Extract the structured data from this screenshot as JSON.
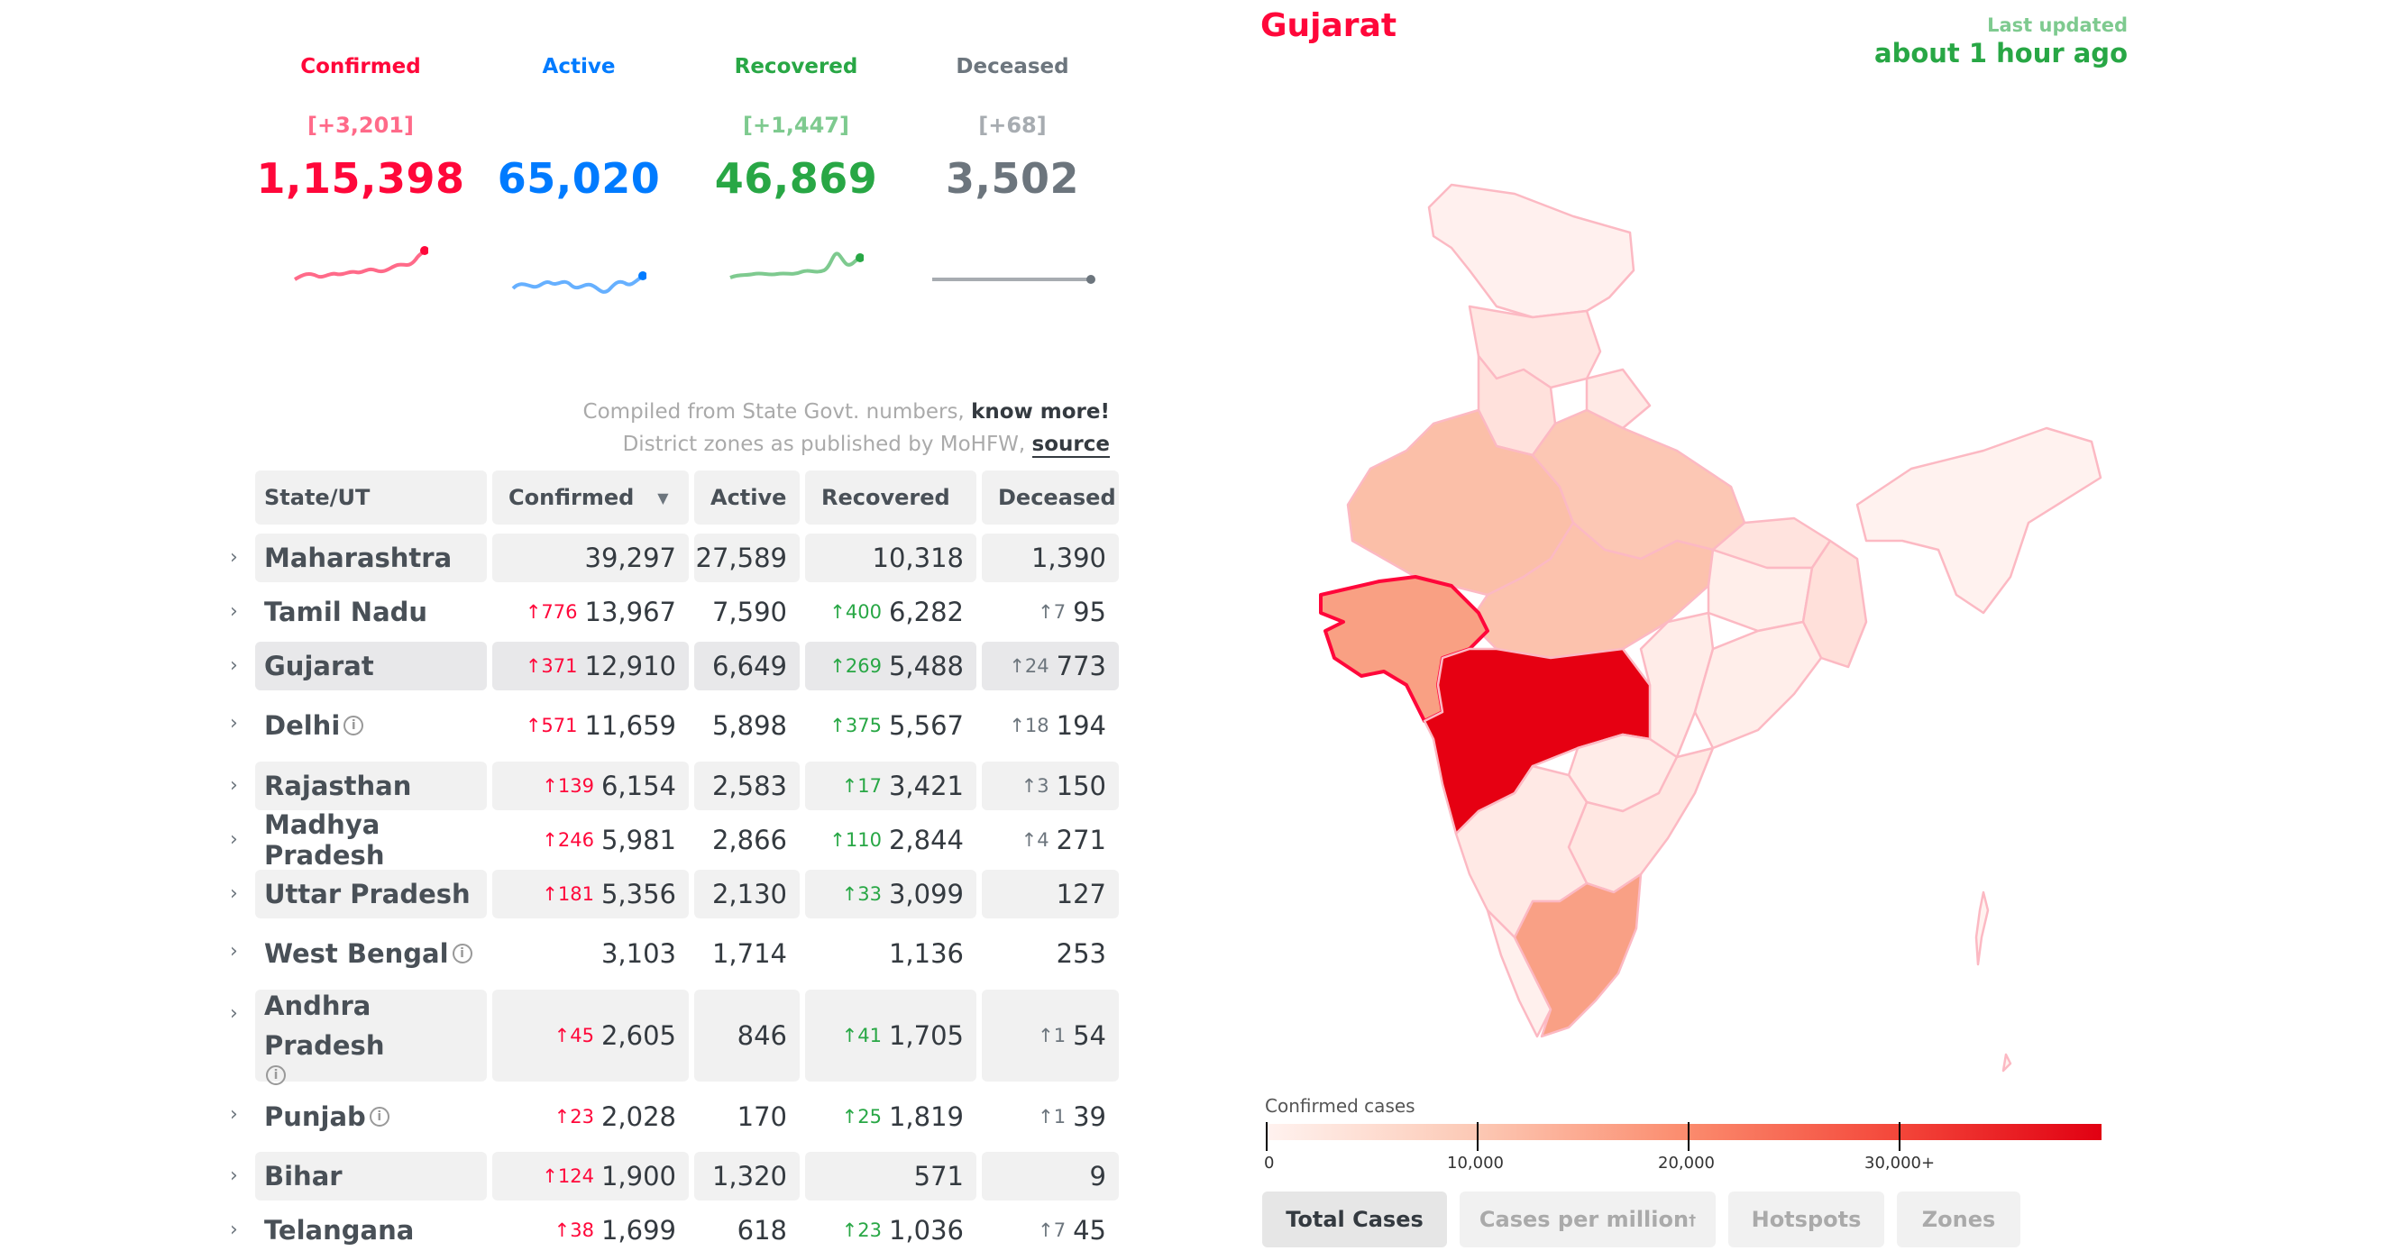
{
  "levels": [
    {
      "label": "Confirmed",
      "delta": "[+3,201]",
      "value": "1,15,398",
      "color": "#ff073a"
    },
    {
      "label": "Active",
      "delta": "",
      "value": "65,020",
      "color": "#007bff"
    },
    {
      "label": "Recovered",
      "delta": "[+1,447]",
      "value": "46,869",
      "color": "#28a745"
    },
    {
      "label": "Deceased",
      "delta": "[+68]",
      "value": "3,502",
      "color": "#6c757d"
    }
  ],
  "notes": {
    "line1_text": "Compiled from State Govt. numbers,",
    "line1_link": "know more!",
    "line2_text": "District zones as published by MoHFW,",
    "line2_link": "source"
  },
  "table": {
    "headers": {
      "state": "State/UT",
      "confirmed": "Confirmed",
      "active": "Active",
      "recovered": "Recovered",
      "deceased": "Deceased"
    },
    "rows": [
      {
        "state": "Maharashtra",
        "dc": "",
        "confirmed": "39,297",
        "active": "27,589",
        "dr": "",
        "recovered": "10,318",
        "dd": "",
        "deceased": "1,390"
      },
      {
        "state": "Tamil Nadu",
        "dc": "↑776",
        "confirmed": "13,967",
        "active": "7,590",
        "dr": "↑400",
        "recovered": "6,282",
        "dd": "↑7",
        "deceased": "95"
      },
      {
        "state": "Gujarat",
        "dc": "↑371",
        "confirmed": "12,910",
        "active": "6,649",
        "dr": "↑269",
        "recovered": "5,488",
        "dd": "↑24",
        "deceased": "773"
      },
      {
        "state": "Delhi",
        "dc": "↑571",
        "confirmed": "11,659",
        "active": "5,898",
        "dr": "↑375",
        "recovered": "5,567",
        "dd": "↑18",
        "deceased": "194"
      },
      {
        "state": "Rajasthan",
        "dc": "↑139",
        "confirmed": "6,154",
        "active": "2,583",
        "dr": "↑17",
        "recovered": "3,421",
        "dd": "↑3",
        "deceased": "150"
      },
      {
        "state": "Madhya Pradesh",
        "dc": "↑246",
        "confirmed": "5,981",
        "active": "2,866",
        "dr": "↑110",
        "recovered": "2,844",
        "dd": "↑4",
        "deceased": "271"
      },
      {
        "state": "Uttar Pradesh",
        "dc": "↑181",
        "confirmed": "5,356",
        "active": "2,130",
        "dr": "↑33",
        "recovered": "3,099",
        "dd": "",
        "deceased": "127"
      },
      {
        "state": "West Bengal",
        "dc": "",
        "confirmed": "3,103",
        "active": "1,714",
        "dr": "",
        "recovered": "1,136",
        "dd": "",
        "deceased": "253"
      },
      {
        "state": "Andhra Pradesh",
        "dc": "↑45",
        "confirmed": "2,605",
        "active": "846",
        "dr": "↑41",
        "recovered": "1,705",
        "dd": "↑1",
        "deceased": "54"
      },
      {
        "state": "Punjab",
        "dc": "↑23",
        "confirmed": "2,028",
        "active": "170",
        "dr": "↑25",
        "recovered": "1,819",
        "dd": "↑1",
        "deceased": "39"
      },
      {
        "state": "Bihar",
        "dc": "↑124",
        "confirmed": "1,900",
        "active": "1,320",
        "dr": "",
        "recovered": "571",
        "dd": "",
        "deceased": "9"
      },
      {
        "state": "Telangana",
        "dc": "↑38",
        "confirmed": "1,699",
        "active": "618",
        "dr": "↑23",
        "recovered": "1,036",
        "dd": "↑7",
        "deceased": "45"
      }
    ]
  },
  "map": {
    "state_title": "Gujarat",
    "last_updated_label": "Last updated",
    "last_updated_value": "about 1 hour ago",
    "legend_title": "Confirmed cases",
    "legend_ticks": [
      "0",
      "10,000",
      "20,000",
      "30,000+"
    ]
  },
  "tabs": [
    "Total Cases",
    "Cases per million",
    "Hotspots",
    "Zones"
  ],
  "tab_superscript": "†",
  "active_tab": "Total Cases"
}
